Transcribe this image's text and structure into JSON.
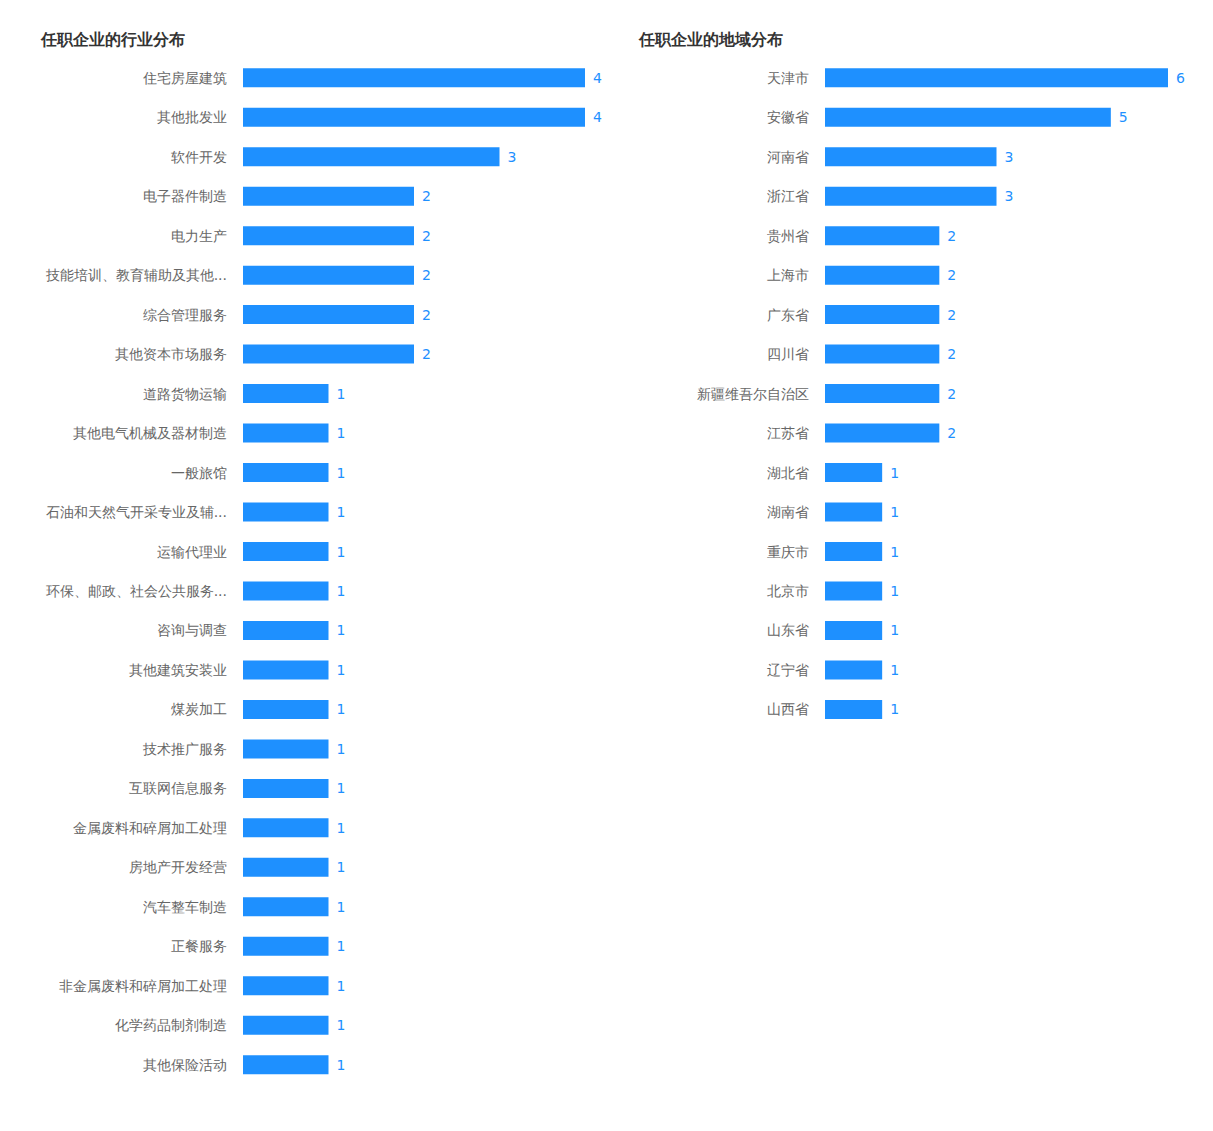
{
  "chart_data": [
    {
      "type": "bar",
      "title": "任职企业的行业分布",
      "orientation": "horizontal",
      "categories": [
        "住宅房屋建筑",
        "其他批发业",
        "软件开发",
        "电子器件制造",
        "电力生产",
        "技能培训、教育辅助及其他...",
        "综合管理服务",
        "其他资本市场服务",
        "道路货物运输",
        "其他电气机械及器材制造",
        "一般旅馆",
        "石油和天然气开采专业及辅...",
        "运输代理业",
        "环保、邮政、社会公共服务...",
        "咨询与调查",
        "其他建筑安装业",
        "煤炭加工",
        "技术推广服务",
        "互联网信息服务",
        "金属废料和碎屑加工处理",
        "房地产开发经营",
        "汽车整车制造",
        "正餐服务",
        "非金属废料和碎屑加工处理",
        "化学药品制剂制造",
        "其他保险活动"
      ],
      "values": [
        4,
        4,
        3,
        2,
        2,
        2,
        2,
        2,
        1,
        1,
        1,
        1,
        1,
        1,
        1,
        1,
        1,
        1,
        1,
        1,
        1,
        1,
        1,
        1,
        1,
        1
      ],
      "color": "#1e90ff",
      "xlim": [
        0,
        4
      ],
      "data_labels": true,
      "tick_labels": "y",
      "grid": false
    },
    {
      "type": "bar",
      "title": "任职企业的地域分布",
      "orientation": "horizontal",
      "categories": [
        "天津市",
        "安徽省",
        "河南省",
        "浙江省",
        "贵州省",
        "上海市",
        "广东省",
        "四川省",
        "新疆维吾尔自治区",
        "江苏省",
        "湖北省",
        "湖南省",
        "重庆市",
        "北京市",
        "山东省",
        "辽宁省",
        "山西省"
      ],
      "values": [
        6,
        5,
        3,
        3,
        2,
        2,
        2,
        2,
        2,
        2,
        1,
        1,
        1,
        1,
        1,
        1,
        1
      ],
      "color": "#1e90ff",
      "xlim": [
        0,
        6
      ],
      "data_labels": true,
      "tick_labels": "y",
      "grid": false
    }
  ]
}
